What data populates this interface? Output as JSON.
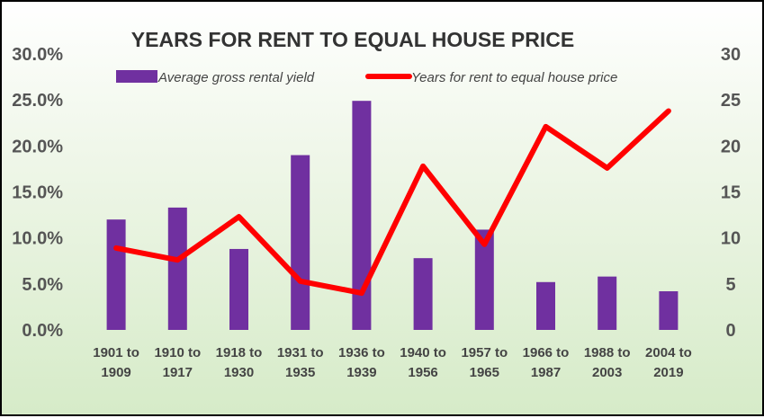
{
  "chart_data": {
    "type": "bar",
    "title": "YEARS FOR RENT TO EQUAL HOUSE PRICE",
    "categories": [
      [
        "1901 to",
        "1909"
      ],
      [
        "1910 to",
        "1917"
      ],
      [
        "1918 to",
        "1930"
      ],
      [
        "1931 to",
        "1935"
      ],
      [
        "1936 to",
        "1939"
      ],
      [
        "1940 to",
        "1956"
      ],
      [
        "1957 to",
        "1965"
      ],
      [
        "1966 to",
        "1987"
      ],
      [
        "1988 to",
        "2003"
      ],
      [
        "2004 to",
        "2019"
      ]
    ],
    "series": [
      {
        "name": "Average gross rental yield",
        "type": "bar",
        "axis": "left",
        "color": "#7030A0",
        "values": [
          12.0,
          13.3,
          8.8,
          19.0,
          24.9,
          7.8,
          10.9,
          5.2,
          5.8,
          4.2
        ]
      },
      {
        "name": "Years for rent to equal house price",
        "type": "line",
        "axis": "right",
        "color": "#FF0000",
        "values": [
          8.9,
          7.6,
          12.3,
          5.3,
          4.0,
          17.8,
          9.3,
          22.1,
          17.6,
          23.8
        ]
      }
    ],
    "y_left": {
      "min": 0,
      "max": 30,
      "step": 5,
      "tick_labels": [
        "0.0%",
        "5.0%",
        "10.0%",
        "15.0%",
        "20.0%",
        "25.0%",
        "30.0%"
      ]
    },
    "y_right": {
      "min": 0,
      "max": 30,
      "step": 5,
      "tick_labels": [
        "0",
        "5",
        "10",
        "15",
        "20",
        "25",
        "30"
      ]
    },
    "grid": false,
    "legend_position": "top"
  }
}
